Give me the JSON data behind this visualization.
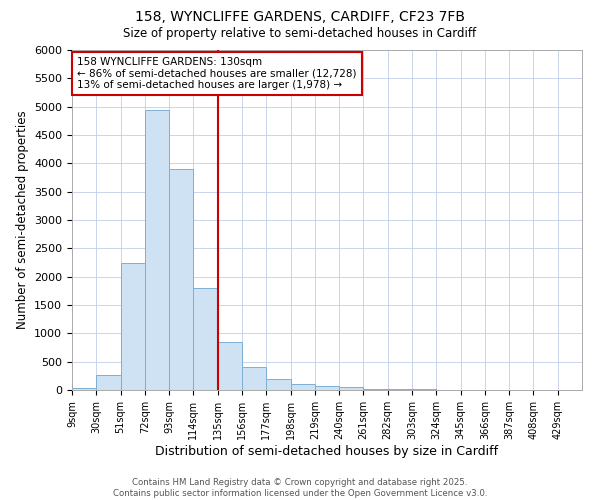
{
  "title_line1": "158, WYNCLIFFE GARDENS, CARDIFF, CF23 7FB",
  "title_line2": "Size of property relative to semi-detached houses in Cardiff",
  "xlabel": "Distribution of semi-detached houses by size in Cardiff",
  "ylabel": "Number of semi-detached properties",
  "bin_labels": [
    "9sqm",
    "30sqm",
    "51sqm",
    "72sqm",
    "93sqm",
    "114sqm",
    "135sqm",
    "156sqm",
    "177sqm",
    "198sqm",
    "219sqm",
    "240sqm",
    "261sqm",
    "282sqm",
    "303sqm",
    "324sqm",
    "345sqm",
    "366sqm",
    "387sqm",
    "408sqm",
    "429sqm"
  ],
  "bar_values": [
    30,
    260,
    2250,
    4950,
    3900,
    1800,
    850,
    410,
    190,
    105,
    70,
    45,
    25,
    15,
    10,
    7,
    5,
    4,
    3,
    2
  ],
  "bin_edges": [
    9,
    30,
    51,
    72,
    93,
    114,
    135,
    156,
    177,
    198,
    219,
    240,
    261,
    282,
    303,
    324,
    345,
    366,
    387,
    408,
    429
  ],
  "bin_width": 21,
  "property_size": 130,
  "vline_x": 135,
  "bar_color": "#cfe2f3",
  "bar_edge_color": "#7bafd4",
  "vline_color": "#cc0000",
  "annotation_title": "158 WYNCLIFFE GARDENS: 130sqm",
  "annotation_line2": "← 86% of semi-detached houses are smaller (12,728)",
  "annotation_line3": "13% of semi-detached houses are larger (1,978) →",
  "annotation_box_color": "#cc0000",
  "ylim": [
    0,
    6000
  ],
  "yticks": [
    0,
    500,
    1000,
    1500,
    2000,
    2500,
    3000,
    3500,
    4000,
    4500,
    5000,
    5500,
    6000
  ],
  "footer_line1": "Contains HM Land Registry data © Crown copyright and database right 2025.",
  "footer_line2": "Contains public sector information licensed under the Open Government Licence v3.0.",
  "bg_color": "#ffffff",
  "plot_bg_color": "#ffffff"
}
